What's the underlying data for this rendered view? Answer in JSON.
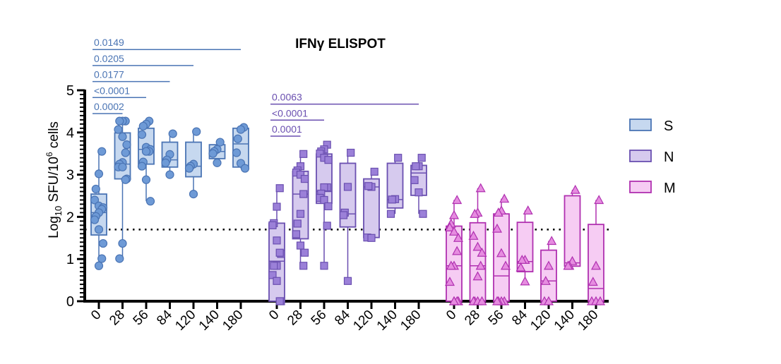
{
  "chart_data": {
    "type": "box",
    "title": "IFNγ ELISPOT",
    "ylabel_main": "Log",
    "ylabel_sub": "10",
    "ylabel_mid": " SFU/10",
    "ylabel_sup": "6",
    "ylabel_end": " cells",
    "ylim": [
      0,
      5
    ],
    "yticks": [
      "0",
      "1",
      "2",
      "3",
      "4",
      "5"
    ],
    "threshold": 1.7,
    "categories": [
      "0",
      "28",
      "56",
      "84",
      "120",
      "140",
      "180"
    ],
    "legend_position": "right",
    "series": [
      {
        "name": "S",
        "stroke": "#4a74b4",
        "fill": "#c6d8ef",
        "point": "#6e9ad6",
        "marker": "circle",
        "groups": [
          {
            "q1": 1.57,
            "median": 2.1,
            "q3": 2.54,
            "min": 0.84,
            "max": 3.55,
            "points": [
              3.55,
              3.02,
              2.66,
              2.4,
              2.26,
              2.22,
              2.18,
              2.1,
              2.01,
              1.93,
              1.7,
              1.37,
              1.01,
              0.84
            ]
          },
          {
            "q1": 2.9,
            "median": 3.25,
            "q3": 3.99,
            "min": 1.01,
            "max": 4.27,
            "points": [
              4.27,
              4.27,
              4.27,
              4.07,
              3.9,
              3.71,
              3.52,
              3.29,
              3.25,
              3.18,
              3.18,
              2.9,
              2.88,
              1.37,
              1.01
            ]
          },
          {
            "q1": 3.25,
            "median": 3.6,
            "q3": 4.1,
            "min": 2.37,
            "max": 4.27,
            "points": [
              4.27,
              4.2,
              4.15,
              3.95,
              3.65,
              3.6,
              3.55,
              3.55,
              3.3,
              3.2,
              2.88,
              2.37
            ]
          },
          {
            "q1": 3.18,
            "median": 3.35,
            "q3": 3.77,
            "min": 3.0,
            "max": 3.97,
            "points": [
              3.97,
              3.48,
              3.35,
              3.28,
              3.0
            ]
          },
          {
            "q1": 2.95,
            "median": 3.2,
            "q3": 3.77,
            "min": 2.54,
            "max": 4.02,
            "points": [
              4.02,
              3.25,
              3.2,
              3.15,
              2.54
            ]
          },
          {
            "q1": 3.38,
            "median": 3.55,
            "q3": 3.71,
            "min": 3.28,
            "max": 3.77,
            "points": [
              3.77,
              3.6,
              3.55,
              3.5,
              3.28
            ]
          },
          {
            "q1": 3.18,
            "median": 3.73,
            "q3": 4.1,
            "min": 3.15,
            "max": 4.12,
            "points": [
              4.12,
              4.07,
              3.85,
              3.52,
              3.27,
              3.15
            ]
          }
        ],
        "comparisons": [
          {
            "label": "0.0149",
            "from": "0",
            "to": "180"
          },
          {
            "label": "0.0205",
            "from": "0",
            "to": "120"
          },
          {
            "label": "0.0177",
            "from": "0",
            "to": "84"
          },
          {
            "label": "<0.0001",
            "from": "0",
            "to": "56"
          },
          {
            "label": "0.0002",
            "from": "0",
            "to": "28"
          }
        ]
      },
      {
        "name": "N",
        "stroke": "#6a4fb0",
        "fill": "#d6caee",
        "point": "#9b80d8",
        "marker": "square",
        "groups": [
          {
            "q1": 0.0,
            "median": 0.95,
            "q3": 1.85,
            "min": 0,
            "max": 2.68,
            "points": [
              2.68,
              2.24,
              1.85,
              1.8,
              1.44,
              1.12,
              1.15,
              0.84,
              0.84,
              0.62,
              0.48,
              0,
              0
            ]
          },
          {
            "q1": 1.48,
            "median": 2.54,
            "q3": 3.08,
            "min": 0.84,
            "max": 3.49,
            "points": [
              3.49,
              3.2,
              3.1,
              3.05,
              3.0,
              2.9,
              2.54,
              2.07,
              1.84,
              1.59,
              1.32,
              1.15,
              0.84
            ]
          },
          {
            "q1": 2.32,
            "median": 2.6,
            "q3": 3.49,
            "min": 0.84,
            "max": 3.71,
            "points": [
              3.71,
              3.6,
              3.55,
              3.5,
              3.4,
              3.35,
              2.7,
              2.7,
              2.55,
              2.45,
              2.4,
              2.25,
              1.79,
              0.84
            ]
          },
          {
            "q1": 1.76,
            "median": 2.07,
            "q3": 3.27,
            "min": 0.48,
            "max": 3.52,
            "points": [
              3.52,
              2.71,
              2.1,
              2.04,
              0.48
            ]
          },
          {
            "q1": 1.51,
            "median": 2.71,
            "q3": 2.9,
            "min": 1.5,
            "max": 3.07,
            "points": [
              3.07,
              2.71,
              2.73,
              1.51,
              1.5
            ]
          },
          {
            "q1": 2.21,
            "median": 2.41,
            "q3": 3.27,
            "min": 2.07,
            "max": 3.4,
            "points": [
              3.4,
              2.42,
              2.41,
              2.07
            ]
          },
          {
            "q1": 2.51,
            "median": 3.04,
            "q3": 3.22,
            "min": 2.07,
            "max": 3.4,
            "points": [
              3.4,
              3.2,
              3.2,
              2.87,
              2.58,
              2.07
            ]
          }
        ],
        "comparisons": [
          {
            "label": "0.0063",
            "from": "0",
            "to": "180"
          },
          {
            "label": "<0.0001",
            "from": "0",
            "to": "56"
          },
          {
            "label": "0.0001",
            "from": "0",
            "to": "28"
          }
        ]
      },
      {
        "name": "M",
        "stroke": "#b030b0",
        "fill": "#f6ccf3",
        "point": "#e68ce0",
        "marker": "triangle",
        "groups": [
          {
            "q1": 0,
            "median": 0.84,
            "q3": 1.78,
            "min": 0,
            "max": 2.4,
            "points": [
              2.4,
              2.04,
              1.84,
              1.75,
              1.65,
              1.5,
              1.19,
              0.84,
              0.84,
              0.46,
              0,
              0,
              0,
              0
            ]
          },
          {
            "q1": 0,
            "median": 0.84,
            "q3": 1.86,
            "min": 0,
            "max": 2.68,
            "points": [
              2.68,
              2.1,
              2.07,
              1.55,
              1.29,
              1.15,
              0.84,
              0.59,
              0,
              0,
              0,
              0
            ]
          },
          {
            "q1": 0,
            "median": 0.6,
            "q3": 2.07,
            "min": 0,
            "max": 2.43,
            "points": [
              2.43,
              2.15,
              2.1,
              1.72,
              1.14,
              0.84,
              0,
              0,
              0,
              0
            ]
          },
          {
            "q1": 0.7,
            "median": 0.94,
            "q3": 1.87,
            "min": 0.47,
            "max": 2.15,
            "points": [
              2.15,
              0.98,
              0.98,
              0.8,
              0.47
            ]
          },
          {
            "q1": 0,
            "median": 0.48,
            "q3": 1.21,
            "min": 0,
            "max": 1.43,
            "points": [
              1.43,
              0.84,
              0.48,
              0,
              0
            ]
          },
          {
            "q1": 0.83,
            "median": 0.91,
            "q3": 2.5,
            "min": 0.83,
            "max": 2.64,
            "points": [
              2.64,
              0.95,
              0.84,
              0.84
            ]
          },
          {
            "q1": 0,
            "median": 0.3,
            "q3": 1.82,
            "min": 0,
            "max": 2.4,
            "points": [
              2.4,
              0.84,
              0.46,
              0,
              0,
              0
            ]
          }
        ],
        "comparisons": []
      }
    ]
  }
}
